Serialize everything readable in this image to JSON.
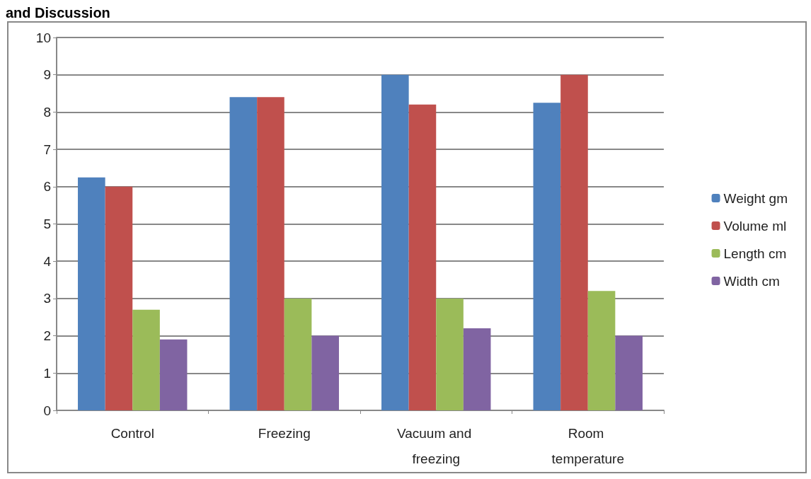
{
  "chart_data": {
    "type": "bar",
    "annotations": [
      "and Discussion"
    ],
    "categories": [
      "Control",
      "Freezing",
      "Vacuum and freezing",
      "Room temperature"
    ],
    "series": [
      {
        "name": "Weight gm",
        "color": "#4f81bd",
        "values": [
          6.25,
          8.4,
          9.0,
          8.25
        ]
      },
      {
        "name": "Volume ml",
        "color": "#c0504d",
        "values": [
          6.0,
          8.4,
          8.2,
          9.0
        ]
      },
      {
        "name": "Length cm",
        "color": "#9bbb59",
        "values": [
          2.7,
          3.0,
          3.0,
          3.2
        ]
      },
      {
        "name": "Width cm",
        "color": "#8064a2",
        "values": [
          1.9,
          2.0,
          2.2,
          2.0
        ]
      }
    ],
    "ylim": [
      0,
      10
    ],
    "yticks": [
      0,
      1,
      2,
      3,
      4,
      5,
      6,
      7,
      8,
      9,
      10
    ],
    "grid": "y",
    "legend": "right"
  }
}
